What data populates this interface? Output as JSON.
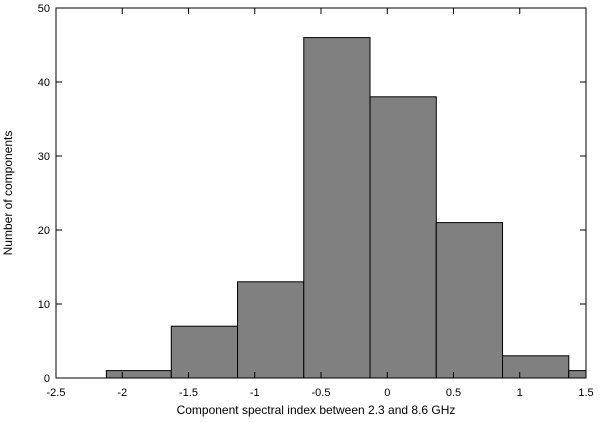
{
  "chart_data": {
    "type": "bar",
    "xlabel": "Component spectral index between 2.3 and 8.6 GHz",
    "ylabel": "Number of components",
    "xlim": [
      -2.5,
      1.5
    ],
    "ylim": [
      0,
      50
    ],
    "x_ticks": [
      -2.5,
      -2,
      -1.5,
      -1,
      -0.5,
      0,
      0.5,
      1,
      1.5
    ],
    "x_tick_labels": [
      "-2.5",
      "-2",
      "-1.5",
      "-1",
      "-0.5",
      "0",
      "0.5",
      "1",
      "1.5"
    ],
    "y_ticks": [
      0,
      10,
      20,
      30,
      40,
      50
    ],
    "y_tick_labels": [
      "0",
      "10",
      "20",
      "30",
      "40",
      "50"
    ],
    "bins": [
      {
        "x0": -2.12,
        "x1": -1.63,
        "value": 1
      },
      {
        "x0": -1.63,
        "x1": -1.13,
        "value": 7
      },
      {
        "x0": -1.13,
        "x1": -0.63,
        "value": 13
      },
      {
        "x0": -0.63,
        "x1": -0.13,
        "value": 46
      },
      {
        "x0": -0.13,
        "x1": 0.37,
        "value": 38
      },
      {
        "x0": 0.37,
        "x1": 0.87,
        "value": 21
      },
      {
        "x0": 0.87,
        "x1": 1.37,
        "value": 3
      },
      {
        "x0": 1.37,
        "x1": 1.87,
        "value": 1
      }
    ],
    "bar_color": "#808080",
    "grid": false,
    "legend": "none"
  }
}
